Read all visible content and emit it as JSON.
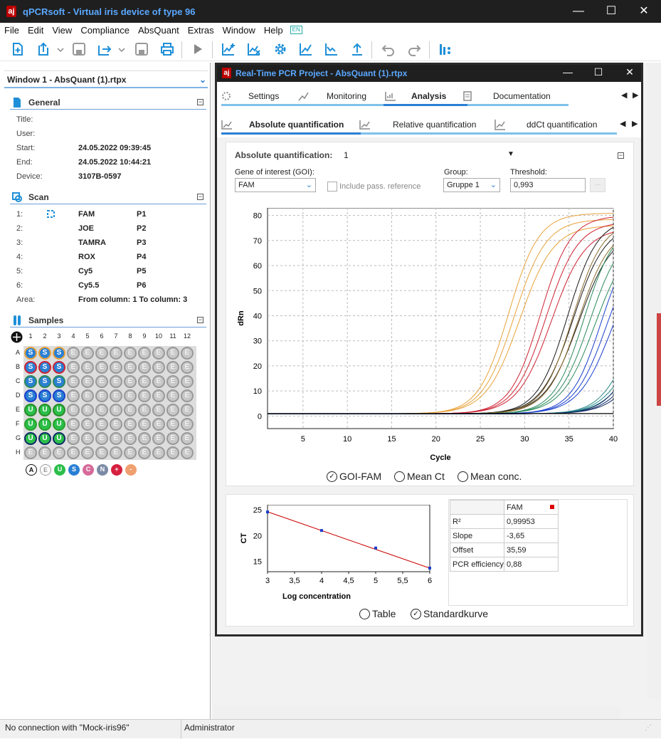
{
  "app": {
    "title": "qPCRsoft - Virtual iris device of type 96",
    "icon_label": "aj",
    "title_icon": "app-logo-icon"
  },
  "window_controls": {
    "minimize": "—",
    "maximize": "☐",
    "close": "✕"
  },
  "menu": [
    "File",
    "Edit",
    "View",
    "Compliance",
    "AbsQuant",
    "Extras",
    "Window",
    "Help"
  ],
  "menu_extra_icon": "EN",
  "toolbar_icons": [
    "new-project-icon",
    "open-icon",
    "dropdown-arrow-icon",
    "save-icon",
    "export-icon",
    "dropdown-arrow-icon",
    "save-as-icon",
    "print-icon",
    "run-icon",
    "analysis-add-icon",
    "analysis-remove-icon",
    "settings-gear-icon",
    "curve-add-icon",
    "curve-down-icon",
    "upload-icon",
    "undo-icon",
    "redo-icon",
    "plate-icon"
  ],
  "left": {
    "window_select": "Window 1 - AbsQuant (1).rtpx",
    "general": {
      "header": "General",
      "fields": [
        {
          "label": "Title:",
          "value": ""
        },
        {
          "label": "User:",
          "value": ""
        },
        {
          "label": "Start:",
          "value": "24.05.2022 09:39:45"
        },
        {
          "label": "End:",
          "value": "24.05.2022 10:44:21"
        },
        {
          "label": "Device:",
          "value": "3107B-0597"
        }
      ]
    },
    "scan": {
      "header": "Scan",
      "rows": [
        {
          "n": "1:",
          "dye": "FAM",
          "pos": "P1"
        },
        {
          "n": "2:",
          "dye": "JOE",
          "pos": "P2"
        },
        {
          "n": "3:",
          "dye": "TAMRA",
          "pos": "P3"
        },
        {
          "n": "4:",
          "dye": "ROX",
          "pos": "P4"
        },
        {
          "n": "5:",
          "dye": "Cy5",
          "pos": "P5"
        },
        {
          "n": "6:",
          "dye": "Cy5.5",
          "pos": "P6"
        }
      ],
      "area_label": "Area:",
      "area_value": "From column: 1 To column: 3"
    },
    "samples": {
      "header": "Samples",
      "cols": [
        "1",
        "2",
        "3",
        "4",
        "5",
        "6",
        "7",
        "8",
        "9",
        "10",
        "11",
        "12"
      ],
      "rows": [
        "A",
        "B",
        "C",
        "D",
        "E",
        "F",
        "G",
        "H"
      ],
      "wells": [
        [
          "S",
          "S",
          "S",
          "E",
          "E",
          "E",
          "E",
          "E",
          "E",
          "E",
          "E",
          "E"
        ],
        [
          "S",
          "S",
          "S",
          "E",
          "E",
          "E",
          "E",
          "E",
          "E",
          "E",
          "E",
          "E"
        ],
        [
          "S",
          "S",
          "S",
          "E",
          "E",
          "E",
          "E",
          "E",
          "E",
          "E",
          "E",
          "E"
        ],
        [
          "S",
          "S",
          "S",
          "E",
          "E",
          "E",
          "E",
          "E",
          "E",
          "E",
          "E",
          "E"
        ],
        [
          "U",
          "U",
          "U",
          "E",
          "E",
          "E",
          "E",
          "E",
          "E",
          "E",
          "E",
          "E"
        ],
        [
          "U",
          "U",
          "U",
          "E",
          "E",
          "E",
          "E",
          "E",
          "E",
          "E",
          "E",
          "E"
        ],
        [
          "U",
          "U",
          "U",
          "E",
          "E",
          "E",
          "E",
          "E",
          "E",
          "E",
          "E",
          "E"
        ],
        [
          "E",
          "E",
          "E",
          "E",
          "E",
          "E",
          "E",
          "E",
          "E",
          "E",
          "E",
          "E"
        ]
      ],
      "ring_colors": [
        "#e8a23a",
        "#cc2233",
        "#2a8a5a",
        "#1a3fcc",
        "#2a8a2a",
        "#2aa02a",
        "#102a66",
        "#999999"
      ],
      "legend": [
        "A",
        "E",
        "U",
        "S",
        "C",
        "N",
        "+",
        "-"
      ],
      "legend_colors": [
        "#ffffff",
        "#ffffff",
        "#2bbf4a",
        "#2a7fd4",
        "#d66a9a",
        "#7b8aa5",
        "#d62040",
        "#f0a070"
      ]
    }
  },
  "project": {
    "title": "Real-Time PCR Project - AbsQuant (1).rtpx",
    "tabs": [
      "Settings",
      "Monitoring",
      "Analysis",
      "Documentation"
    ],
    "subtabs": [
      "Absolute quantification",
      "Relative quantification",
      "ddCt quantification"
    ],
    "aq": {
      "label": "Absolute quantification:",
      "value": "1",
      "goi_label": "Gene of interest (GOI):",
      "goi_value": "FAM",
      "include_ref": "Include pass. reference",
      "group_label": "Group:",
      "group_value": "Gruppe 1",
      "threshold_label": "Threshold:",
      "threshold_value": "0,993",
      "more": "..."
    },
    "radios1": [
      "GOI-FAM",
      "Mean Ct",
      "Mean conc."
    ],
    "radios2": [
      "Table",
      "Standardkurve"
    ],
    "params": {
      "header": "FAM",
      "rows": [
        {
          "k": "R²",
          "v": "0,99953"
        },
        {
          "k": "Slope",
          "v": "-3,65"
        },
        {
          "k": "Offset",
          "v": "35,59"
        },
        {
          "k": "PCR efficiency",
          "v": "0,88"
        }
      ]
    }
  },
  "status": {
    "connection": "No connection with \"Mock-iris96\"",
    "user": "Administrator"
  },
  "chart_data": [
    {
      "type": "line",
      "title": "",
      "xlabel": "Cycle",
      "ylabel": "dRn",
      "xlim": [
        1,
        40
      ],
      "ylim": [
        -5,
        83
      ],
      "xticks": [
        5,
        10,
        15,
        20,
        25,
        30,
        35,
        40
      ],
      "yticks": [
        0,
        10,
        20,
        30,
        40,
        50,
        60,
        70,
        80
      ],
      "grid": true,
      "threshold": 0.993,
      "series": [
        {
          "color": "#e8a23a",
          "count": 3,
          "ct": 21.0,
          "plateau": 80
        },
        {
          "color": "#cc2233",
          "count": 3,
          "ct": 24.6,
          "plateau": 79
        },
        {
          "color": "#1a1a1a",
          "count": 3,
          "ct": 27.7,
          "plateau": 78
        },
        {
          "color": "#8a6a2a",
          "count": 2,
          "ct": 28.3,
          "plateau": 77
        },
        {
          "color": "#2a8a5a",
          "count": 3,
          "ct": 29.6,
          "plateau": 76
        },
        {
          "color": "#1a3fcc",
          "count": 3,
          "ct": 31.6,
          "plateau": 73
        },
        {
          "color": "#2a8a8a",
          "count": 3,
          "ct": 35.3,
          "plateau": 50
        },
        {
          "color": "#102a66",
          "count": 3,
          "ct": 36.2,
          "plateau": 45
        }
      ]
    },
    {
      "type": "scatter",
      "title": "",
      "xlabel": "Log concentration",
      "ylabel": "CT",
      "xlim": [
        3,
        6
      ],
      "ylim": [
        13,
        26
      ],
      "xticks": [
        "3",
        "3,5",
        "4",
        "4,5",
        "5",
        "5,5",
        "6"
      ],
      "yticks": [
        15,
        20,
        25
      ],
      "points": [
        {
          "x": 3,
          "y": 24.6
        },
        {
          "x": 4,
          "y": 21.0
        },
        {
          "x": 5,
          "y": 17.6
        },
        {
          "x": 6,
          "y": 13.7
        }
      ],
      "fit": {
        "slope": -3.65,
        "offset": 35.59
      }
    }
  ]
}
